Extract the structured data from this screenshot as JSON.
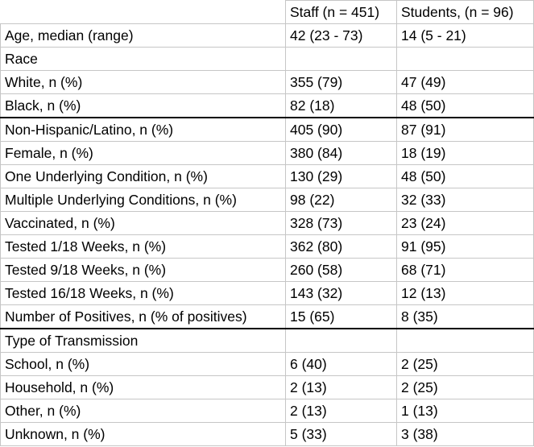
{
  "header": {
    "col1": "",
    "col2": "Staff (n = 451)",
    "col3": "Students, (n = 96)"
  },
  "rows": [
    {
      "label": "Age, median (range)",
      "staff": "42 (23 - 73)",
      "students": "14 (5 - 21)"
    },
    {
      "label": "Race",
      "staff": "",
      "students": ""
    },
    {
      "label": "White, n (%)",
      "staff": "355 (79)",
      "students": "47 (49)"
    },
    {
      "label": "Black, n (%)",
      "staff": "82 (18)",
      "students": "48 (50)"
    },
    {
      "label": "Non-Hispanic/Latino, n (%)",
      "staff": "405 (90)",
      "students": "87 (91)"
    },
    {
      "label": "Female, n (%)",
      "staff": "380 (84)",
      "students": "18 (19)"
    },
    {
      "label": "One Underlying Condition, n (%)",
      "staff": "130 (29)",
      "students": "48 (50)"
    },
    {
      "label": "Multiple Underlying Conditions, n (%)",
      "staff": "98 (22)",
      "students": "32 (33)"
    },
    {
      "label": "Vaccinated, n (%)",
      "staff": "328 (73)",
      "students": "23 (24)"
    },
    {
      "label": "Tested 1/18 Weeks, n (%)",
      "staff": "362 (80)",
      "students": "91 (95)"
    },
    {
      "label": "Tested 9/18 Weeks, n (%)",
      "staff": "260 (58)",
      "students": "68 (71)"
    },
    {
      "label": "Tested 16/18 Weeks, n (%)",
      "staff": "143 (32)",
      "students": "12 (13)"
    },
    {
      "label": "Number of Positives, n (% of positives)",
      "staff": "15 (65)",
      "students": "8 (35)"
    },
    {
      "label": "Type of Transmission",
      "staff": "",
      "students": ""
    },
    {
      "label": "School, n (%)",
      "staff": "6 (40)",
      "students": "2 (25)"
    },
    {
      "label": "Household, n (%)",
      "staff": "2 (13)",
      "students": "2 (25)"
    },
    {
      "label": "Other, n (%)",
      "staff": "2 (13)",
      "students": "1 (13)"
    },
    {
      "label": "Unknown, n (%)",
      "staff": "5 (33)",
      "students": "3 (38)"
    }
  ]
}
